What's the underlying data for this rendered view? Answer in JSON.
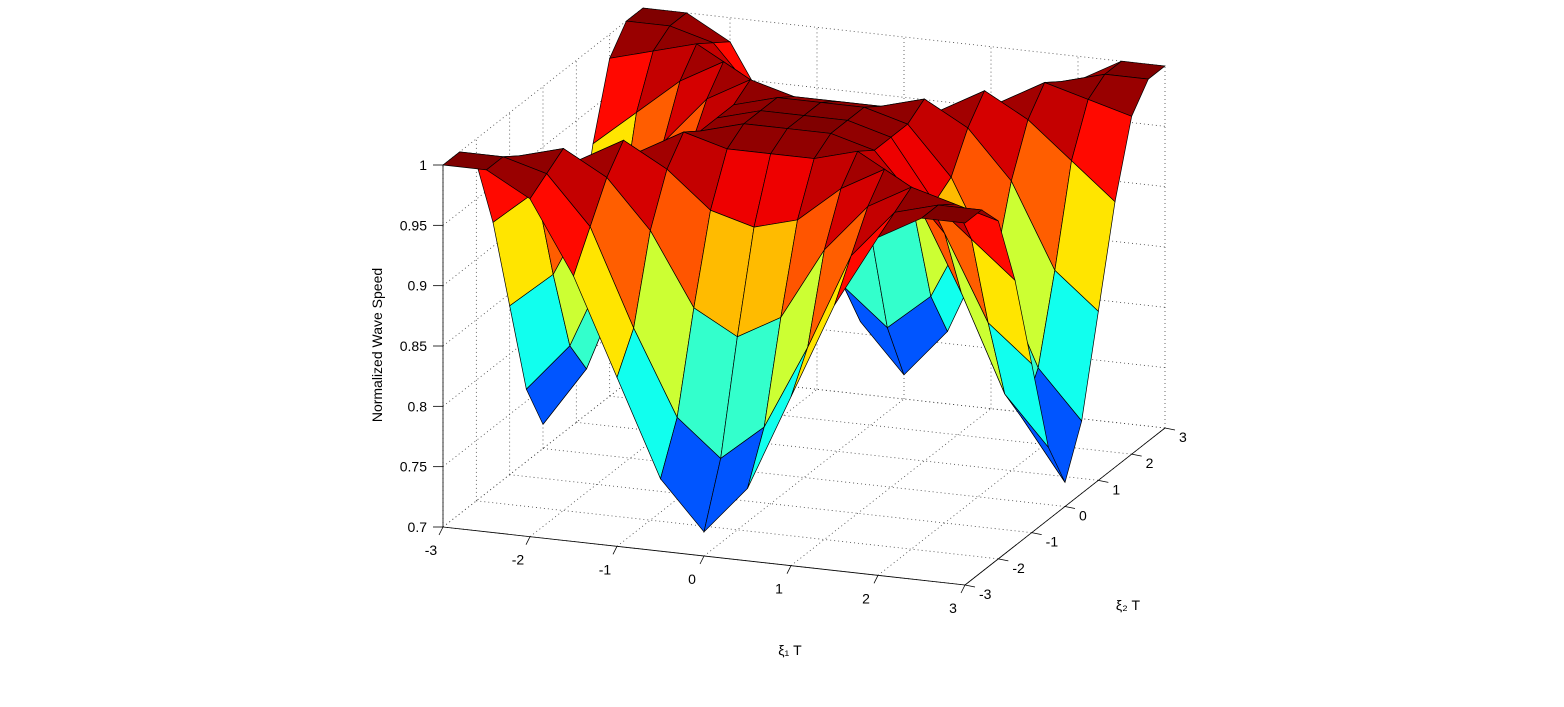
{
  "chart_data": {
    "type": "surface",
    "xlabel": "ξ₁ T",
    "ylabel": "ξ₂ T",
    "zlabel": "Normalized Wave Speed",
    "x": [
      -3,
      -2.5,
      -2,
      -1.5,
      -1,
      -0.5,
      0,
      0.5,
      1,
      1.5,
      2,
      2.5,
      3
    ],
    "y": [
      -3,
      -2.5,
      -2,
      -1.5,
      -1,
      -0.5,
      0,
      0.5,
      1,
      1.5,
      2,
      2.5,
      3
    ],
    "z": [
      [
        1,
        1,
        0.98,
        0.92,
        0.84,
        0.76,
        0.72,
        0.76,
        0.84,
        0.92,
        0.98,
        1,
        1
      ],
      [
        1,
        1,
        0.99,
        0.95,
        0.87,
        0.8,
        0.77,
        0.8,
        0.87,
        0.95,
        0.99,
        1,
        1
      ],
      [
        0.98,
        0.99,
        1,
        0.98,
        0.94,
        0.88,
        0.86,
        0.88,
        0.94,
        0.98,
        1,
        0.99,
        0.98
      ],
      [
        0.92,
        0.95,
        0.98,
        1,
        0.98,
        0.95,
        0.94,
        0.95,
        0.98,
        1,
        0.98,
        0.95,
        0.92
      ],
      [
        0.84,
        0.87,
        0.94,
        0.98,
        1,
        0.99,
        0.99,
        0.99,
        1,
        0.98,
        0.94,
        0.87,
        0.84
      ],
      [
        0.76,
        0.8,
        0.88,
        0.95,
        0.99,
        1,
        1,
        1,
        0.99,
        0.95,
        0.88,
        0.8,
        0.76
      ],
      [
        0.72,
        0.77,
        0.86,
        0.94,
        0.99,
        1,
        1,
        1,
        0.99,
        0.94,
        0.86,
        0.77,
        0.72
      ],
      [
        0.76,
        0.8,
        0.88,
        0.95,
        0.99,
        1,
        1,
        1,
        0.99,
        0.95,
        0.88,
        0.8,
        0.76
      ],
      [
        0.84,
        0.87,
        0.94,
        0.98,
        1,
        0.99,
        0.99,
        0.99,
        1,
        0.98,
        0.94,
        0.87,
        0.84
      ],
      [
        0.92,
        0.95,
        0.98,
        1,
        0.98,
        0.95,
        0.94,
        0.95,
        0.98,
        1,
        0.98,
        0.95,
        0.92
      ],
      [
        0.98,
        0.99,
        1,
        0.98,
        0.94,
        0.88,
        0.86,
        0.88,
        0.94,
        0.98,
        1,
        0.99,
        0.98
      ],
      [
        1,
        1,
        0.99,
        0.95,
        0.87,
        0.8,
        0.77,
        0.8,
        0.87,
        0.95,
        0.99,
        1,
        1
      ],
      [
        1,
        1,
        0.98,
        0.92,
        0.84,
        0.76,
        0.72,
        0.76,
        0.84,
        0.92,
        0.98,
        1,
        1
      ]
    ],
    "xlim": [
      -3,
      3
    ],
    "ylim": [
      -3,
      3
    ],
    "zlim": [
      0.7,
      1
    ],
    "xticks": [
      -3,
      -2,
      -1,
      0,
      1,
      2,
      3
    ],
    "yticks": [
      -3,
      -2,
      -1,
      0,
      1,
      2,
      3
    ],
    "zticks": [
      0.7,
      0.75,
      0.8,
      0.85,
      0.9,
      0.95,
      1
    ],
    "colormap": "jet",
    "edgecolor": "#000000",
    "grid": true
  }
}
